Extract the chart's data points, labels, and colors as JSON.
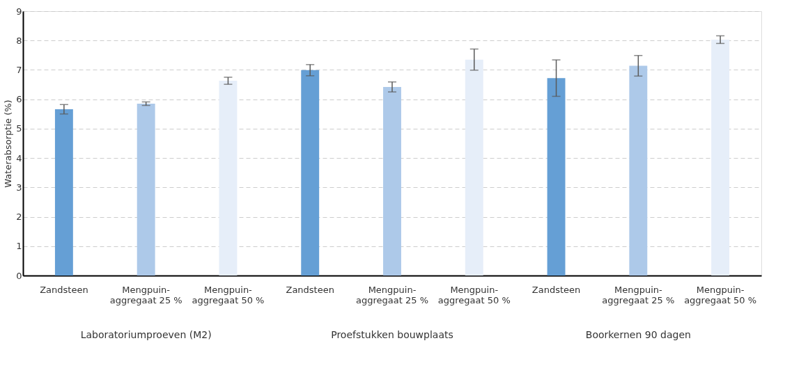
{
  "chart_data": {
    "type": "bar",
    "ylabel": "Waterabsorptie (%)",
    "categories": [
      "Zandsteen",
      "Mengpuin-\naggregaat 25 %",
      "Mengpuin-\naggregaat 50 %",
      "Zandsteen",
      "Mengpuin-\naggregaat 25 %",
      "Mengpuin-\naggregaat 50 %",
      "Zandsteen",
      "Mengpuin-\naggregaat 25 %",
      "Mengpuin-\naggregaat 50 %"
    ],
    "values": [
      5.66,
      5.85,
      6.63,
      6.99,
      6.42,
      7.35,
      6.72,
      7.14,
      8.03
    ],
    "errors": [
      0.16,
      0.06,
      0.12,
      0.19,
      0.17,
      0.36,
      0.62,
      0.35,
      0.13
    ],
    "colors": [
      "#659fd5",
      "#adc9e9",
      "#e6eef9",
      "#659fd5",
      "#adc9e9",
      "#e6eef9",
      "#659fd5",
      "#adc9e9",
      "#e6eef9"
    ],
    "annotations": [
      "Laboratoriumproeven (M2)",
      "Proefstukken bouwplaats",
      "Boorkernen 90 dagen"
    ],
    "ylim": [
      0,
      9
    ],
    "yticks": [
      0,
      1,
      2,
      3,
      4,
      5,
      6,
      7,
      8,
      9
    ],
    "grid": "y"
  }
}
